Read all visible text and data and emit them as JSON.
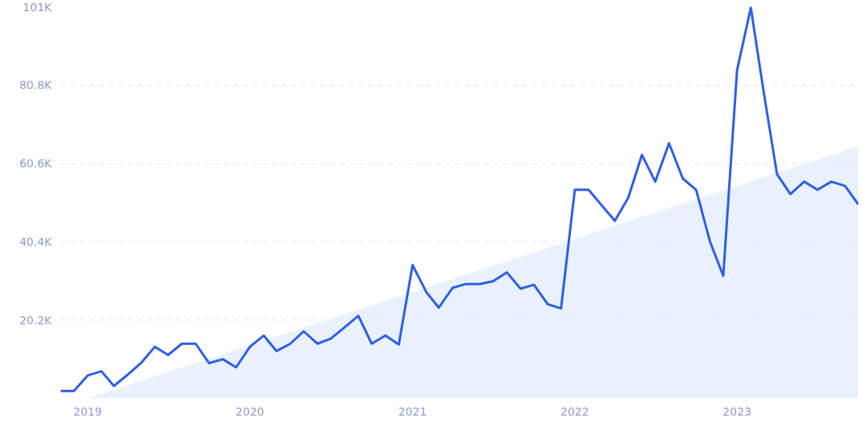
{
  "chart_data": {
    "type": "line",
    "x": [
      "2018-11",
      "2018-12",
      "2019-01",
      "2019-02",
      "2019-03",
      "2019-04",
      "2019-05",
      "2019-06",
      "2019-07",
      "2019-08",
      "2019-09",
      "2019-10",
      "2019-11",
      "2019-12",
      "2020-01",
      "2020-02",
      "2020-03",
      "2020-04",
      "2020-05",
      "2020-06",
      "2020-07",
      "2020-08",
      "2020-09",
      "2020-10",
      "2020-11",
      "2020-12",
      "2021-01",
      "2021-02",
      "2021-03",
      "2021-04",
      "2021-05",
      "2021-06",
      "2021-07",
      "2021-08",
      "2021-09",
      "2021-10",
      "2021-11",
      "2021-12",
      "2022-01",
      "2022-02",
      "2022-03",
      "2022-04",
      "2022-05",
      "2022-06",
      "2022-07",
      "2022-08",
      "2022-09",
      "2022-10",
      "2022-11",
      "2022-12",
      "2023-01",
      "2023-02",
      "2023-03",
      "2023-04",
      "2023-05",
      "2023-06",
      "2023-07",
      "2023-08",
      "2023-09",
      "2023-10"
    ],
    "series": [
      {
        "type": "area",
        "color": "#e6effc",
        "x": [
          "2019-01",
          "2023-10"
        ],
        "values": [
          0,
          65000
        ]
      },
      {
        "color": "#2f5fe0",
        "values": [
          1900,
          1900,
          5900,
          7000,
          3200,
          6100,
          9100,
          13300,
          11200,
          14100,
          14100,
          9100,
          10100,
          8000,
          13300,
          16200,
          12200,
          14100,
          17300,
          14100,
          15400,
          18300,
          21300,
          14100,
          16200,
          13900,
          34400,
          27400,
          23400,
          28500,
          29500,
          29500,
          30200,
          32500,
          28300,
          29300,
          24300,
          23200,
          53800,
          53800,
          50000,
          45800,
          51700,
          62800,
          55900,
          65800,
          56700,
          53800,
          40500,
          31600,
          84600,
          100800,
          79700,
          57800,
          52700,
          55900,
          53800,
          55900,
          54800,
          50000
        ]
      }
    ],
    "xlim": [
      "2018-11",
      "2023-10"
    ],
    "xticks": [
      "2019",
      "2020",
      "2021",
      "2022",
      "2023"
    ],
    "ylim": [
      0,
      101000
    ],
    "yticks": [
      {
        "value": 20200,
        "label": "20.2K"
      },
      {
        "value": 40400,
        "label": "40.4K"
      },
      {
        "value": 60600,
        "label": "60.6K"
      },
      {
        "value": 80800,
        "label": "80.8K"
      },
      {
        "value": 101000,
        "label": "101K"
      }
    ],
    "grid": "y",
    "line_style": "solid"
  }
}
